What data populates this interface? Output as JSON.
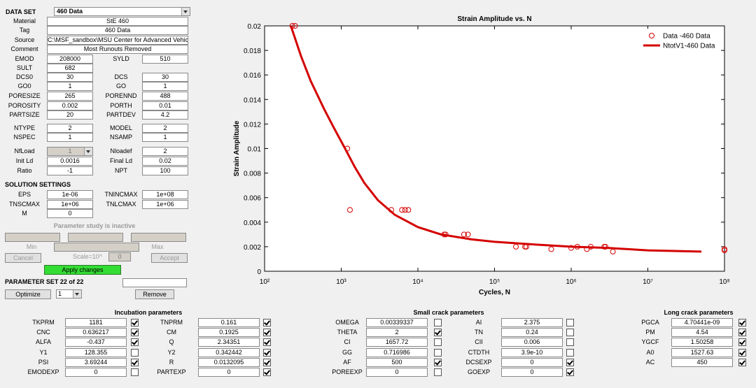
{
  "panel": {
    "dataset": {
      "label": "DATA SET",
      "value": "460 Data"
    },
    "info": [
      {
        "label": "Material",
        "value": "StE 460"
      },
      {
        "label": "Tag",
        "value": "460 Data"
      },
      {
        "label": "Source",
        "value": "C:\\MSF_sandbox\\MSU Center for Advanced Vehic"
      },
      {
        "label": "Comment",
        "value": "Most Runouts Removed"
      }
    ],
    "rows": [
      [
        {
          "label": "EMOD",
          "value": "208000"
        },
        {
          "label": "SYLD",
          "value": "510"
        }
      ],
      [
        {
          "label": "SULT",
          "value": "682"
        }
      ],
      [
        {
          "label": "DCS0",
          "value": "30"
        },
        {
          "label": "DCS",
          "value": "30"
        }
      ],
      [
        {
          "label": "GO0",
          "value": "1"
        },
        {
          "label": "GO",
          "value": "1"
        }
      ],
      [
        {
          "label": "PORESIZE",
          "value": "265"
        },
        {
          "label": "PORENND",
          "value": "488"
        }
      ],
      [
        {
          "label": "POROSITY",
          "value": "0.002"
        },
        {
          "label": "PORTH",
          "value": "0.01"
        }
      ],
      [
        {
          "label": "PARTSIZE",
          "value": "20"
        },
        {
          "label": "PARTDEV",
          "value": "4.2"
        }
      ],
      [
        {
          "label": "NTYPE",
          "value": "2"
        },
        {
          "label": "MODEL",
          "value": "2"
        }
      ],
      [
        {
          "label": "NSPEC",
          "value": "1"
        },
        {
          "label": "NSAMP",
          "value": "1"
        }
      ],
      [
        {
          "label": "NfLoad",
          "value": "1",
          "disabled": true
        },
        {
          "label": "Nloadef",
          "value": "2"
        }
      ],
      [
        {
          "label": "Init Ld",
          "value": "0.0016"
        },
        {
          "label": "Final Ld",
          "value": "0.02"
        }
      ],
      [
        {
          "label": "Ratio",
          "value": "-1"
        },
        {
          "label": "NPT",
          "value": "100"
        }
      ]
    ],
    "solution": {
      "title": "SOLUTION SETTINGS",
      "rows": [
        [
          {
            "label": "EPS",
            "value": "1e-06"
          },
          {
            "label": "TNINCMAX",
            "value": "1e+08"
          }
        ],
        [
          {
            "label": "TNSCMAX",
            "value": "1e+06"
          },
          {
            "label": "TNLCMAX",
            "value": "1e+06"
          }
        ],
        [
          {
            "label": "M",
            "value": "0"
          }
        ]
      ]
    },
    "study": {
      "status": "Parameter study is inactive",
      "min": "Min",
      "max": "Max",
      "cancel": "Cancel",
      "scale": "Scale=10^",
      "scale_value": "0",
      "accept": "Accept",
      "apply": "Apply changes"
    },
    "param_set": {
      "title": "PARAMETER SET 22 of 22",
      "optimize": "Optimize",
      "choice": "1",
      "remove": "Remove"
    }
  },
  "sections": [
    {
      "title": "Incubation parameters",
      "columns": [
        [
          {
            "label": "TKPRM",
            "value": "1181",
            "checked": true
          },
          {
            "label": "CNC",
            "value": "0.636217",
            "checked": true
          },
          {
            "label": "ALFA",
            "value": "-0.437",
            "checked": true
          },
          {
            "label": "Y1",
            "value": "128.355",
            "checked": false
          },
          {
            "label": "PSI",
            "value": "3.69244",
            "checked": true
          },
          {
            "label": "EMODEXP",
            "value": "0",
            "checked": false
          }
        ],
        [
          {
            "label": "TNPRM",
            "value": "0.161",
            "checked": true
          },
          {
            "label": "CM",
            "value": "0.1925",
            "checked": true
          },
          {
            "label": "Q",
            "value": "2.34351",
            "checked": true
          },
          {
            "label": "Y2",
            "value": "0.342442",
            "checked": true
          },
          {
            "label": "R",
            "value": "0.0132095",
            "checked": true
          },
          {
            "label": "PARTEXP",
            "value": "0",
            "checked": true
          }
        ]
      ]
    },
    {
      "title": "Small crack parameters",
      "columns": [
        [
          {
            "label": "OMEGA",
            "value": "0.00339337",
            "checked": false
          },
          {
            "label": "THETA",
            "value": "2",
            "checked": true
          },
          {
            "label": "CI",
            "value": "1657.72",
            "checked": false
          },
          {
            "label": "GG",
            "value": "0.716986",
            "checked": false
          },
          {
            "label": "AF",
            "value": "500",
            "checked": true
          },
          {
            "label": "POREEXP",
            "value": "0",
            "checked": false
          }
        ],
        [
          {
            "label": "AI",
            "value": "2.375",
            "checked": false
          },
          {
            "label": "TN",
            "value": "0.24",
            "checked": false
          },
          {
            "label": "CII",
            "value": "0.006",
            "checked": false
          },
          {
            "label": "CTDTH",
            "value": "3.9e-10",
            "checked": false
          },
          {
            "label": "DCSEXP",
            "value": "0",
            "checked": true
          },
          {
            "label": "GOEXP",
            "value": "0",
            "checked": true
          }
        ]
      ]
    },
    {
      "title": "Long crack parameters",
      "columns": [
        [
          {
            "label": "PGCA",
            "value": "4.70441e-09",
            "checked": true
          },
          {
            "label": "PM",
            "value": "4.54",
            "checked": true
          },
          {
            "label": "YGCF",
            "value": "1.50258",
            "checked": true
          },
          {
            "label": "A0",
            "value": "1527.63",
            "checked": true
          },
          {
            "label": "AC",
            "value": "450",
            "checked": true
          }
        ]
      ]
    }
  ],
  "chart_data": {
    "type": "scatter",
    "title": "Strain Amplitude vs. N",
    "xlabel": "Cycles, N",
    "ylabel": "Strain Amplitude",
    "xscale": "log",
    "xlim": [
      100,
      100000000
    ],
    "xticks": [
      {
        "value": 100,
        "label": "10²"
      },
      {
        "value": 1000,
        "label": "10³"
      },
      {
        "value": 10000,
        "label": "10⁴"
      },
      {
        "value": 100000,
        "label": "10⁵"
      },
      {
        "value": 1000000,
        "label": "10⁶"
      },
      {
        "value": 10000000,
        "label": "10⁷"
      },
      {
        "value": 100000000,
        "label": "10⁸"
      }
    ],
    "ylim": [
      0,
      0.02
    ],
    "yticks": [
      0,
      0.002,
      0.004,
      0.006,
      0.008,
      0.01,
      0.012,
      0.014,
      0.016,
      0.018,
      0.02
    ],
    "legend": "northeast",
    "series": [
      {
        "name": "Data -460 Data",
        "type": "scatter",
        "color": "#d40000",
        "x": [
          230,
          250,
          1200,
          1300,
          4500,
          6200,
          6800,
          7500,
          22000,
          23000,
          40000,
          45000,
          190000,
          250000,
          260000,
          550000,
          1000000,
          1200000,
          1600000,
          1800000,
          2700000,
          2800000,
          3500000,
          100000000,
          100000000
        ],
        "y": [
          0.02,
          0.02,
          0.01,
          0.005,
          0.005,
          0.005,
          0.005,
          0.005,
          0.003,
          0.003,
          0.003,
          0.003,
          0.002,
          0.002,
          0.002,
          0.0018,
          0.0019,
          0.002,
          0.0018,
          0.002,
          0.002,
          0.002,
          0.0016,
          0.0018,
          0.0017
        ]
      },
      {
        "name": "NtotV1-460 Data",
        "type": "line",
        "color": "#d40000",
        "x": [
          220,
          300,
          400,
          600,
          800,
          1100,
          1500,
          2000,
          3000,
          5000,
          10000,
          20000,
          50000,
          100000,
          300000,
          1000000,
          3000000,
          10000000,
          50000000
        ],
        "y": [
          0.02,
          0.0175,
          0.0155,
          0.0132,
          0.0117,
          0.0101,
          0.0085,
          0.0072,
          0.0058,
          0.0046,
          0.0036,
          0.003,
          0.0026,
          0.0024,
          0.0022,
          0.002,
          0.0019,
          0.0017,
          0.0016
        ]
      }
    ]
  }
}
